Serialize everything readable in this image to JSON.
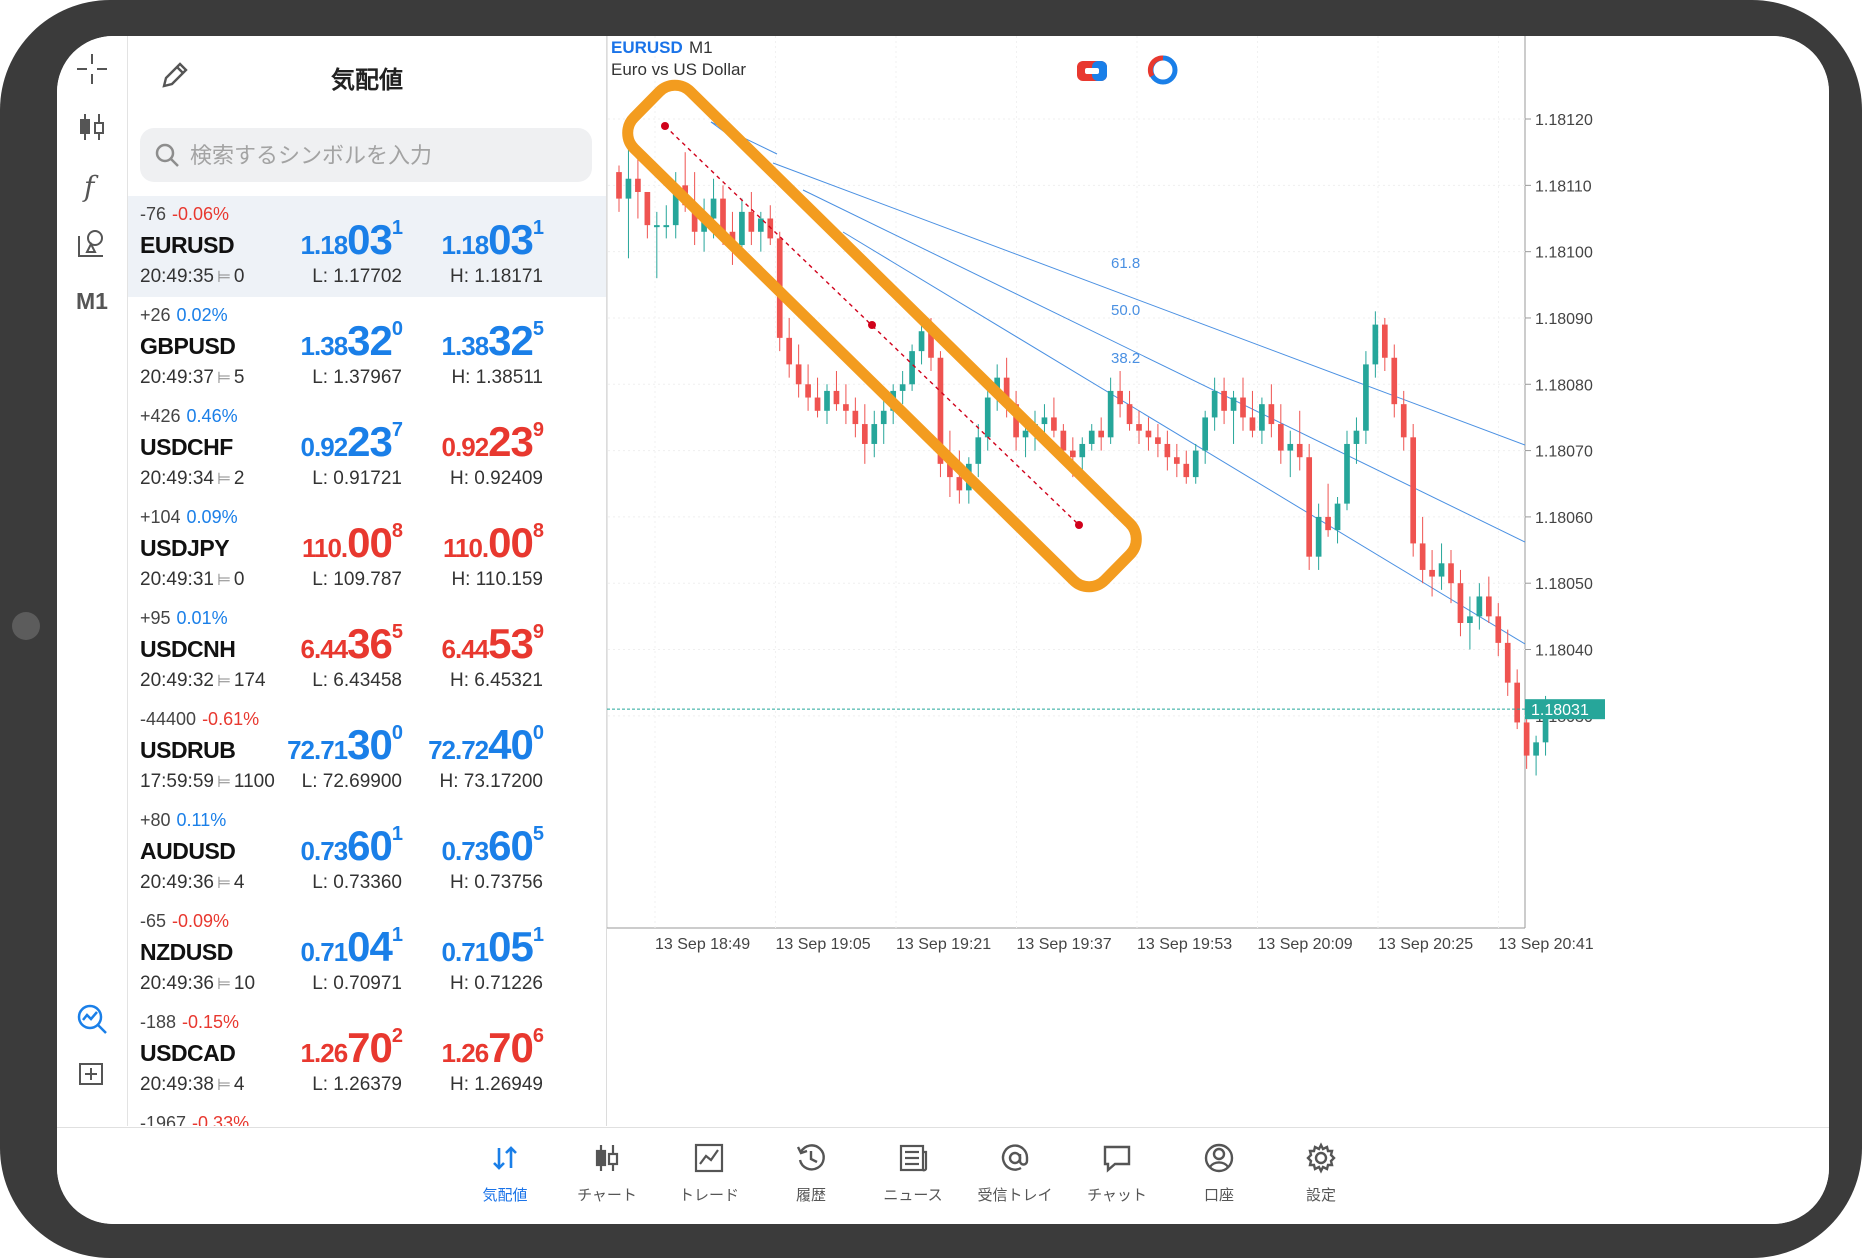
{
  "watchlist": {
    "title": "気配値",
    "search_placeholder": "検索するシンボルを入力",
    "rows": [
      {
        "change": "-76",
        "percent": "-0.06%",
        "pct_color": "#e8382f",
        "symbol": "EURUSD",
        "time": "20:49:35",
        "spread": "0",
        "bid_small": "1.18",
        "bid_big": "03",
        "bid_sup": "1",
        "bid_color": "#1a7fe8",
        "ask_small": "1.18",
        "ask_big": "03",
        "ask_sup": "1",
        "ask_color": "#1a7fe8",
        "low": "L: 1.17702",
        "high": "H: 1.18171"
      },
      {
        "change": "+26",
        "percent": "0.02%",
        "pct_color": "#1a7fe8",
        "symbol": "GBPUSD",
        "time": "20:49:37",
        "spread": "5",
        "bid_small": "1.38",
        "bid_big": "32",
        "bid_sup": "0",
        "bid_color": "#1a7fe8",
        "ask_small": "1.38",
        "ask_big": "32",
        "ask_sup": "5",
        "ask_color": "#1a7fe8",
        "low": "L: 1.37967",
        "high": "H: 1.38511"
      },
      {
        "change": "+426",
        "percent": "0.46%",
        "pct_color": "#1a7fe8",
        "symbol": "USDCHF",
        "time": "20:49:34",
        "spread": "2",
        "bid_small": "0.92",
        "bid_big": "23",
        "bid_sup": "7",
        "bid_color": "#1a7fe8",
        "ask_small": "0.92",
        "ask_big": "23",
        "ask_sup": "9",
        "ask_color": "#e8382f",
        "low": "L: 0.91721",
        "high": "H: 0.92409"
      },
      {
        "change": "+104",
        "percent": "0.09%",
        "pct_color": "#1a7fe8",
        "symbol": "USDJPY",
        "time": "20:49:31",
        "spread": "0",
        "bid_small": "110.",
        "bid_big": "00",
        "bid_sup": "8",
        "bid_color": "#e8382f",
        "ask_small": "110.",
        "ask_big": "00",
        "ask_sup": "8",
        "ask_color": "#e8382f",
        "low": "L: 109.787",
        "high": "H: 110.159"
      },
      {
        "change": "+95",
        "percent": "0.01%",
        "pct_color": "#1a7fe8",
        "symbol": "USDCNH",
        "time": "20:49:32",
        "spread": "174",
        "bid_small": "6.44",
        "bid_big": "36",
        "bid_sup": "5",
        "bid_color": "#e8382f",
        "ask_small": "6.44",
        "ask_big": "53",
        "ask_sup": "9",
        "ask_color": "#e8382f",
        "low": "L: 6.43458",
        "high": "H: 6.45321"
      },
      {
        "change": "-44400",
        "percent": "-0.61%",
        "pct_color": "#e8382f",
        "symbol": "USDRUB",
        "time": "17:59:59",
        "spread": "1100",
        "bid_small": "72.71",
        "bid_big": "30",
        "bid_sup": "0",
        "bid_color": "#1a7fe8",
        "ask_small": "72.72",
        "ask_big": "40",
        "ask_sup": "0",
        "ask_color": "#1a7fe8",
        "low": "L: 72.69900",
        "high": "H: 73.17200"
      },
      {
        "change": "+80",
        "percent": "0.11%",
        "pct_color": "#1a7fe8",
        "symbol": "AUDUSD",
        "time": "20:49:36",
        "spread": "4",
        "bid_small": "0.73",
        "bid_big": "60",
        "bid_sup": "1",
        "bid_color": "#1a7fe8",
        "ask_small": "0.73",
        "ask_big": "60",
        "ask_sup": "5",
        "ask_color": "#1a7fe8",
        "low": "L: 0.73360",
        "high": "H: 0.73756"
      },
      {
        "change": "-65",
        "percent": "-0.09%",
        "pct_color": "#e8382f",
        "symbol": "NZDUSD",
        "time": "20:49:36",
        "spread": "10",
        "bid_small": "0.71",
        "bid_big": "04",
        "bid_sup": "1",
        "bid_color": "#1a7fe8",
        "ask_small": "0.71",
        "ask_big": "05",
        "ask_sup": "1",
        "ask_color": "#1a7fe8",
        "low": "L: 0.70971",
        "high": "H: 0.71226"
      },
      {
        "change": "-188",
        "percent": "-0.15%",
        "pct_color": "#e8382f",
        "symbol": "USDCAD",
        "time": "20:49:38",
        "spread": "4",
        "bid_small": "1.26",
        "bid_big": "70",
        "bid_sup": "2",
        "bid_color": "#e8382f",
        "ask_small": "1.26",
        "ask_big": "70",
        "ask_sup": "6",
        "ask_color": "#e8382f",
        "low": "L: 1.26379",
        "high": "H: 1.26949"
      },
      {
        "change": "-1967",
        "percent": "-0.33%",
        "pct_color": "#e8382f",
        "symbol": "",
        "time": "",
        "spread": "",
        "bid_small": "",
        "bid_big": "",
        "bid_sup": "",
        "bid_color": "#1a7fe8",
        "ask_small": "",
        "ask_big": "",
        "ask_sup": "",
        "ask_color": "#1a7fe8",
        "low": "",
        "high": ""
      }
    ]
  },
  "toolbar": {
    "period_label": "M1",
    "icons": [
      "crosshair-icon",
      "chart-type-icon",
      "indicator-icon",
      "objects-icon",
      "trade-signals-icon",
      "add-icon"
    ]
  },
  "chart": {
    "symbol": "EURUSD",
    "period": "M1",
    "description": "Euro vs US Dollar",
    "price_labels": [
      "1.18120",
      "1.18110",
      "1.18100",
      "1.18090",
      "1.18080",
      "1.18070",
      "1.18060",
      "1.18050",
      "1.18040",
      "1.18030"
    ],
    "current_price": "1.18031",
    "time_labels": [
      "13 Sep 18:49",
      "13 Sep 19:05",
      "13 Sep 19:21",
      "13 Sep 19:37",
      "13 Sep 19:53",
      "13 Sep 20:09",
      "13 Sep 20:25",
      "13 Sep 20:41"
    ],
    "fib_levels": [
      "61.8",
      "50.0",
      "38.2"
    ],
    "colors": {
      "bull": "#26a69a",
      "bear": "#ef5350",
      "fan": "#4a90e2",
      "highlight": "#f39c1f",
      "trend": "#d0021b"
    }
  },
  "chart_data": {
    "type": "candlestick",
    "ylim": [
      1.17998,
      1.18128
    ],
    "y_ticks": [
      1.1812,
      1.1811,
      1.181,
      1.1809,
      1.1808,
      1.1807,
      1.1806,
      1.1805,
      1.1804,
      1.1803
    ],
    "current_price": 1.18031,
    "candles": [
      [
        1.18112,
        1.18113,
        1.18106,
        1.18108
      ],
      [
        1.18108,
        1.18116,
        1.18099,
        1.18111
      ],
      [
        1.18111,
        1.18115,
        1.18105,
        1.18109
      ],
      [
        1.18109,
        1.18109,
        1.18102,
        1.18104
      ],
      [
        1.18104,
        1.18106,
        1.18096,
        1.18104
      ],
      [
        1.18104,
        1.18107,
        1.18102,
        1.18104
      ],
      [
        1.18104,
        1.18112,
        1.18102,
        1.1811
      ],
      [
        1.1811,
        1.18115,
        1.18106,
        1.18107
      ],
      [
        1.18107,
        1.18112,
        1.18101,
        1.18103
      ],
      [
        1.18103,
        1.18108,
        1.181,
        1.18105
      ],
      [
        1.18105,
        1.18111,
        1.18102,
        1.18108
      ],
      [
        1.18108,
        1.1811,
        1.18101,
        1.18103
      ],
      [
        1.18103,
        1.18106,
        1.18098,
        1.18101
      ],
      [
        1.18101,
        1.18108,
        1.181,
        1.18106
      ],
      [
        1.18106,
        1.18109,
        1.18101,
        1.18103
      ],
      [
        1.18103,
        1.18106,
        1.181,
        1.18105
      ],
      [
        1.18105,
        1.18107,
        1.18101,
        1.18102
      ],
      [
        1.18102,
        1.18103,
        1.18085,
        1.18087
      ],
      [
        1.18087,
        1.1809,
        1.18081,
        1.18083
      ],
      [
        1.18083,
        1.18086,
        1.18078,
        1.1808
      ],
      [
        1.1808,
        1.18083,
        1.18076,
        1.18078
      ],
      [
        1.18078,
        1.18081,
        1.18075,
        1.18076
      ],
      [
        1.18076,
        1.1808,
        1.18074,
        1.18079
      ],
      [
        1.18079,
        1.18082,
        1.18076,
        1.18077
      ],
      [
        1.18077,
        1.1808,
        1.18074,
        1.18076
      ],
      [
        1.18076,
        1.18078,
        1.18072,
        1.18074
      ],
      [
        1.18074,
        1.18077,
        1.18068,
        1.18071
      ],
      [
        1.18071,
        1.18076,
        1.18069,
        1.18074
      ],
      [
        1.18074,
        1.18078,
        1.18071,
        1.18076
      ],
      [
        1.18076,
        1.1808,
        1.18074,
        1.18079
      ],
      [
        1.18079,
        1.18082,
        1.18077,
        1.1808
      ],
      [
        1.1808,
        1.18086,
        1.18079,
        1.18085
      ],
      [
        1.18085,
        1.18089,
        1.18083,
        1.18088
      ],
      [
        1.18088,
        1.1809,
        1.18082,
        1.18084
      ],
      [
        1.18084,
        1.18085,
        1.18066,
        1.18068
      ],
      [
        1.18068,
        1.18073,
        1.18063,
        1.18066
      ],
      [
        1.18066,
        1.1807,
        1.18062,
        1.18064
      ],
      [
        1.18064,
        1.18069,
        1.18062,
        1.18068
      ],
      [
        1.18068,
        1.18074,
        1.18066,
        1.18072
      ],
      [
        1.18072,
        1.18079,
        1.1807,
        1.18078
      ],
      [
        1.18078,
        1.18083,
        1.18076,
        1.18081
      ],
      [
        1.18081,
        1.18084,
        1.18075,
        1.18077
      ],
      [
        1.18077,
        1.18079,
        1.1807,
        1.18072
      ],
      [
        1.18072,
        1.18075,
        1.18069,
        1.18073
      ],
      [
        1.18073,
        1.18076,
        1.1807,
        1.18074
      ],
      [
        1.18074,
        1.18077,
        1.18071,
        1.18075
      ],
      [
        1.18075,
        1.18078,
        1.18072,
        1.18073
      ],
      [
        1.18073,
        1.18074,
        1.18068,
        1.1807
      ],
      [
        1.1807,
        1.18072,
        1.18066,
        1.18069
      ],
      [
        1.18069,
        1.18072,
        1.18067,
        1.18071
      ],
      [
        1.18071,
        1.18074,
        1.1807,
        1.18073
      ],
      [
        1.18073,
        1.18075,
        1.1807,
        1.18072
      ],
      [
        1.18072,
        1.18081,
        1.18071,
        1.18079
      ],
      [
        1.18079,
        1.18082,
        1.18075,
        1.18077
      ],
      [
        1.18077,
        1.18079,
        1.18073,
        1.18074
      ],
      [
        1.18074,
        1.18076,
        1.18071,
        1.18073
      ],
      [
        1.18073,
        1.18075,
        1.1807,
        1.18072
      ],
      [
        1.18072,
        1.18074,
        1.18069,
        1.18071
      ],
      [
        1.18071,
        1.18073,
        1.18067,
        1.18069
      ],
      [
        1.18069,
        1.18071,
        1.18066,
        1.18068
      ],
      [
        1.18068,
        1.1807,
        1.18065,
        1.18066
      ],
      [
        1.18066,
        1.18071,
        1.18065,
        1.1807
      ],
      [
        1.1807,
        1.18076,
        1.18068,
        1.18075
      ],
      [
        1.18075,
        1.18081,
        1.18073,
        1.18079
      ],
      [
        1.18079,
        1.18081,
        1.18074,
        1.18076
      ],
      [
        1.18076,
        1.18079,
        1.18071,
        1.18078
      ],
      [
        1.18078,
        1.18081,
        1.18073,
        1.18075
      ],
      [
        1.18075,
        1.18079,
        1.18072,
        1.18073
      ],
      [
        1.18073,
        1.18078,
        1.18071,
        1.18077
      ],
      [
        1.18077,
        1.1808,
        1.18072,
        1.18074
      ],
      [
        1.18074,
        1.18077,
        1.18068,
        1.1807
      ],
      [
        1.1807,
        1.18073,
        1.18066,
        1.18071
      ],
      [
        1.18071,
        1.18076,
        1.18067,
        1.18069
      ],
      [
        1.18069,
        1.18071,
        1.18052,
        1.18054
      ],
      [
        1.18054,
        1.18062,
        1.18052,
        1.1806
      ],
      [
        1.1806,
        1.18065,
        1.18057,
        1.18058
      ],
      [
        1.18058,
        1.18063,
        1.18056,
        1.18062
      ],
      [
        1.18062,
        1.18073,
        1.18061,
        1.18071
      ],
      [
        1.18071,
        1.18075,
        1.18068,
        1.18073
      ],
      [
        1.18073,
        1.18085,
        1.18071,
        1.18083
      ],
      [
        1.18083,
        1.18091,
        1.18081,
        1.18089
      ],
      [
        1.18089,
        1.1809,
        1.18082,
        1.18084
      ],
      [
        1.18084,
        1.18086,
        1.18075,
        1.18077
      ],
      [
        1.18077,
        1.18079,
        1.1807,
        1.18072
      ],
      [
        1.18072,
        1.18074,
        1.18054,
        1.18056
      ],
      [
        1.18056,
        1.1806,
        1.1805,
        1.18052
      ],
      [
        1.18052,
        1.18055,
        1.18048,
        1.18051
      ],
      [
        1.18051,
        1.18056,
        1.18049,
        1.18053
      ],
      [
        1.18053,
        1.18055,
        1.18047,
        1.1805
      ],
      [
        1.1805,
        1.18052,
        1.18042,
        1.18044
      ],
      [
        1.18044,
        1.18048,
        1.1804,
        1.18045
      ],
      [
        1.18045,
        1.1805,
        1.18043,
        1.18048
      ],
      [
        1.18048,
        1.18051,
        1.18044,
        1.18045
      ],
      [
        1.18045,
        1.18047,
        1.18039,
        1.18041
      ],
      [
        1.18041,
        1.18043,
        1.18033,
        1.18035
      ],
      [
        1.18035,
        1.18037,
        1.18028,
        1.18029
      ],
      [
        1.18029,
        1.18031,
        1.18022,
        1.18024
      ],
      [
        1.18024,
        1.18027,
        1.18021,
        1.18026
      ],
      [
        1.18026,
        1.18033,
        1.18024,
        1.18031
      ]
    ]
  }
}
